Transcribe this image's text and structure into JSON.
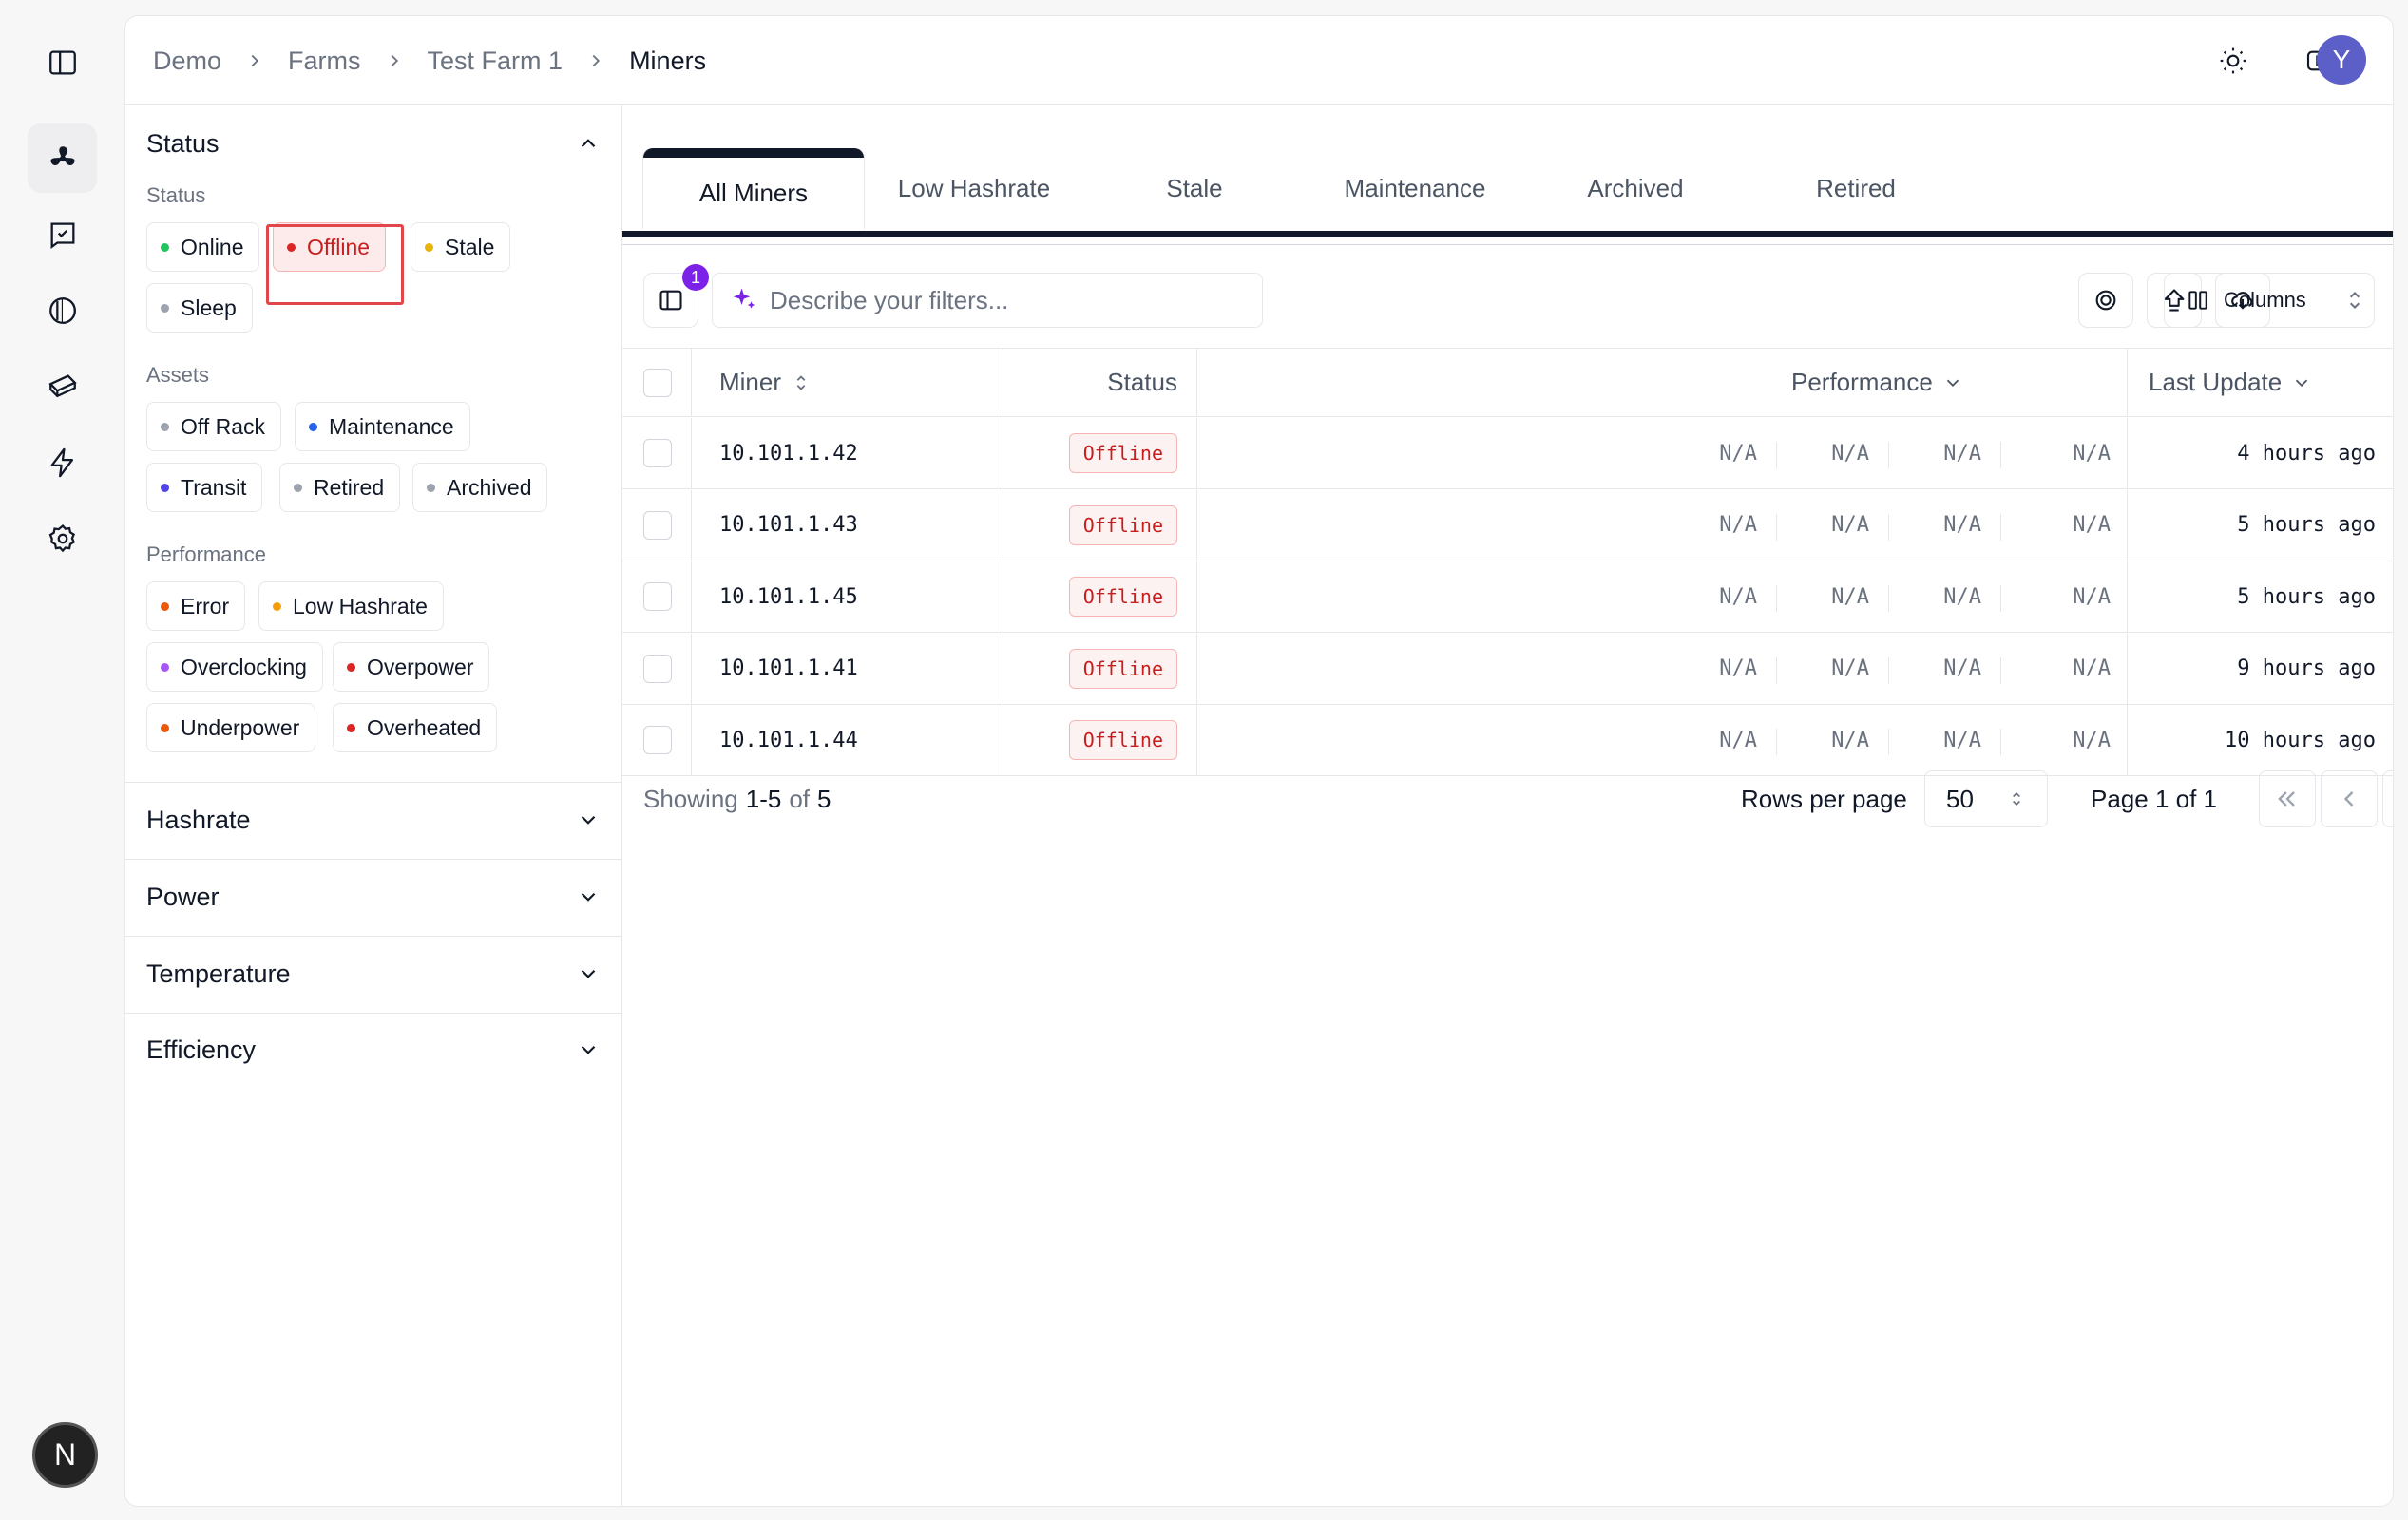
{
  "breadcrumb": [
    "Demo",
    "Farms",
    "Test Farm 1",
    "Miners"
  ],
  "user_initial": "Y",
  "rail_bottom_initial": "N",
  "filters": {
    "status_header": "Status",
    "status_sub": "Status",
    "status_chips": [
      {
        "label": "Online",
        "color": "#22c55e"
      },
      {
        "label": "Offline",
        "color": "#dc2626",
        "selected": true
      },
      {
        "label": "Stale",
        "color": "#eab308"
      },
      {
        "label": "Sleep",
        "color": "#9ca3af"
      }
    ],
    "assets_sub": "Assets",
    "asset_chips": [
      {
        "label": "Off Rack",
        "color": "#9ca3af"
      },
      {
        "label": "Maintenance",
        "color": "#2563eb"
      },
      {
        "label": "Transit",
        "color": "#4f46e5"
      },
      {
        "label": "Retired",
        "color": "#9ca3af"
      },
      {
        "label": "Archived",
        "color": "#9ca3af"
      }
    ],
    "performance_sub": "Performance",
    "performance_chips": [
      {
        "label": "Error",
        "color": "#ea580c"
      },
      {
        "label": "Low Hashrate",
        "color": "#f59e0b"
      },
      {
        "label": "Overclocking",
        "color": "#a855f7"
      },
      {
        "label": "Overpower",
        "color": "#dc2626"
      },
      {
        "label": "Underpower",
        "color": "#ea580c"
      },
      {
        "label": "Overheated",
        "color": "#dc2626"
      }
    ],
    "sections": [
      "Hashrate",
      "Power",
      "Temperature",
      "Efficiency"
    ]
  },
  "tabs": [
    "All Miners",
    "Low Hashrate",
    "Stale",
    "Maintenance",
    "Archived",
    "Retired"
  ],
  "toolbar": {
    "badge_count": "1",
    "search_placeholder": "Describe your filters...",
    "columns_label": "Columns"
  },
  "table": {
    "headers": {
      "miner": "Miner",
      "status": "Status",
      "performance": "Performance",
      "last_update": "Last Update"
    },
    "rows": [
      {
        "miner": "10.101.1.42",
        "status": "Offline",
        "perf": [
          "N/A",
          "N/A",
          "N/A",
          "N/A"
        ],
        "last_update": "4 hours ago"
      },
      {
        "miner": "10.101.1.43",
        "status": "Offline",
        "perf": [
          "N/A",
          "N/A",
          "N/A",
          "N/A"
        ],
        "last_update": "5 hours ago"
      },
      {
        "miner": "10.101.1.45",
        "status": "Offline",
        "perf": [
          "N/A",
          "N/A",
          "N/A",
          "N/A"
        ],
        "last_update": "5 hours ago"
      },
      {
        "miner": "10.101.1.41",
        "status": "Offline",
        "perf": [
          "N/A",
          "N/A",
          "N/A",
          "N/A"
        ],
        "last_update": "9 hours ago"
      },
      {
        "miner": "10.101.1.44",
        "status": "Offline",
        "perf": [
          "N/A",
          "N/A",
          "N/A",
          "N/A"
        ],
        "last_update": "10 hours ago"
      }
    ]
  },
  "pagination": {
    "showing_prefix": "Showing",
    "range": "1-5",
    "of": "of",
    "total": "5",
    "rows_per_page_label": "Rows per page",
    "rows_per_page": "50",
    "page_label": "Page 1 of 1"
  }
}
